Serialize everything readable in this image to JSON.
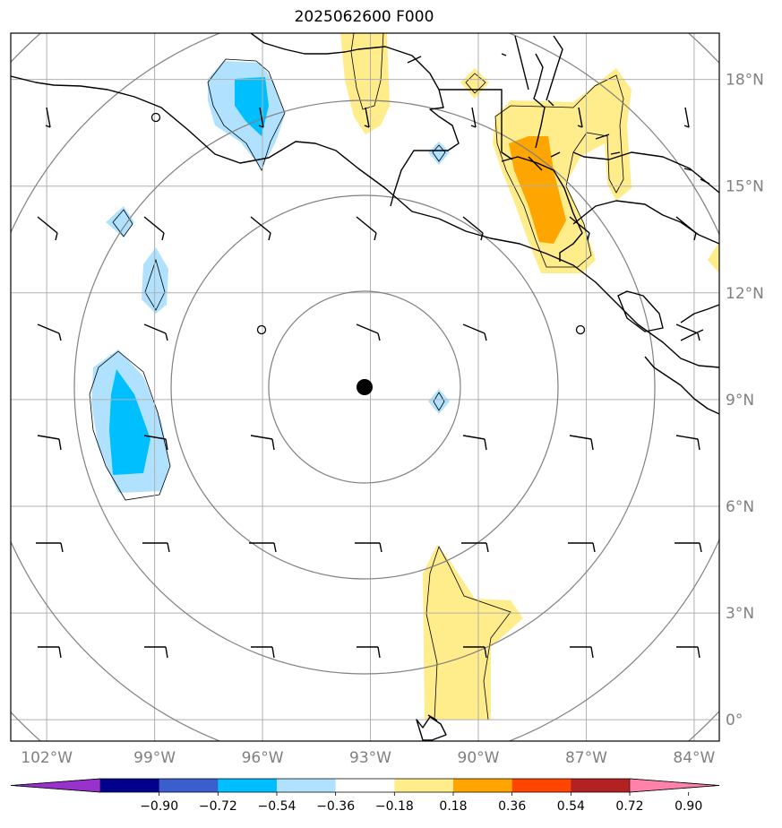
{
  "title": "2025062600 F000",
  "map": {
    "lon_range": [
      -103,
      -83.3
    ],
    "lat_range": [
      -0.6,
      19.3
    ],
    "lon_ticks": [
      {
        "value": -102,
        "label": "102°W"
      },
      {
        "value": -99,
        "label": "99°W"
      },
      {
        "value": -96,
        "label": "96°W"
      },
      {
        "value": -93,
        "label": "93°W"
      },
      {
        "value": -90,
        "label": "90°W"
      },
      {
        "value": -87,
        "label": "87°W"
      },
      {
        "value": -84,
        "label": "84°W"
      }
    ],
    "lat_ticks": [
      {
        "value": 0,
        "label": "0°"
      },
      {
        "value": 3,
        "label": "3°N"
      },
      {
        "value": 6,
        "label": "6°N"
      },
      {
        "value": 9,
        "label": "9°N"
      },
      {
        "value": 12,
        "label": "12°N"
      },
      {
        "value": 15,
        "label": "15°N"
      },
      {
        "value": 18,
        "label": "18°N"
      }
    ],
    "center": {
      "lon": -93,
      "lat": 9.3
    },
    "gridlines": true,
    "grid_color": "#b0b0b0",
    "range_ring_color": "#808080"
  },
  "colorbar": {
    "levels": [
      "−0.90",
      "−0.72",
      "−0.54",
      "−0.36",
      "−0.18",
      "0.18",
      "0.36",
      "0.54",
      "0.72",
      "0.90"
    ],
    "colors": [
      "#9932cc",
      "#00008b",
      "#3a5fcd",
      "#00bfff",
      "#b0e2ff",
      "#ffffff",
      "#ffec8b",
      "#ffa500",
      "#ff4500",
      "#b22222",
      "#ff82ab"
    ]
  }
}
